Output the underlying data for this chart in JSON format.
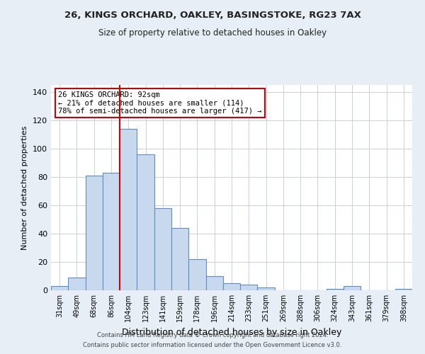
{
  "title1": "26, KINGS ORCHARD, OAKLEY, BASINGSTOKE, RG23 7AX",
  "title2": "Size of property relative to detached houses in Oakley",
  "xlabel": "Distribution of detached houses by size in Oakley",
  "ylabel": "Number of detached properties",
  "bar_labels": [
    "31sqm",
    "49sqm",
    "68sqm",
    "86sqm",
    "104sqm",
    "123sqm",
    "141sqm",
    "159sqm",
    "178sqm",
    "196sqm",
    "214sqm",
    "233sqm",
    "251sqm",
    "269sqm",
    "288sqm",
    "306sqm",
    "324sqm",
    "343sqm",
    "361sqm",
    "379sqm",
    "398sqm"
  ],
  "bar_values": [
    3,
    9,
    81,
    83,
    114,
    96,
    58,
    44,
    22,
    10,
    5,
    4,
    2,
    0,
    0,
    0,
    1,
    3,
    0,
    0,
    1
  ],
  "bar_color": "#c9d9ed",
  "bar_edge_color": "#5b8ec4",
  "annotation_title": "26 KINGS ORCHARD: 92sqm",
  "annotation_line1": "← 21% of detached houses are smaller (114)",
  "annotation_line2": "78% of semi-detached houses are larger (417) →",
  "annotation_box_edge": "#cc0000",
  "vline_x": 3.5,
  "vline_color": "#cc0000",
  "ylim": [
    0,
    145
  ],
  "yticks": [
    0,
    20,
    40,
    60,
    80,
    100,
    120,
    140
  ],
  "footer1": "Contains HM Land Registry data © Crown copyright and database right 2024.",
  "footer2": "Contains public sector information licensed under the Open Government Licence v3.0.",
  "background_color": "#e8eef5",
  "plot_bg_color": "#ffffff"
}
